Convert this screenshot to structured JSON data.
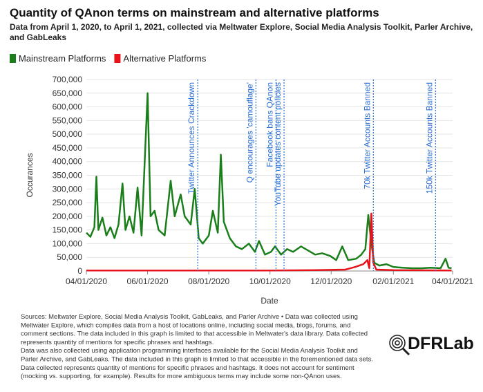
{
  "chart_data": {
    "type": "line",
    "title": "Quantity of QAnon terms on mainstream and alternative platforms",
    "subtitle": [
      "Data from April 1, 2020, to April 1, 2021, collected via Meltwater Explore, Social Media Analysis Toolkit, Parler Archive,",
      "and GabLeaks"
    ],
    "x_label": "Date",
    "y_label": "Occurances",
    "xlim": [
      "2020-04-01",
      "2021-04-01"
    ],
    "xticks": [
      {
        "value": "2020-04-01",
        "label": "04/01/2020"
      },
      {
        "value": "2020-06-01",
        "label": "06/01/2020"
      },
      {
        "value": "2020-08-01",
        "label": "08/01/2020"
      },
      {
        "value": "2020-10-01",
        "label": "10/01/2020"
      },
      {
        "value": "2020-12-01",
        "label": "12/01/2020"
      },
      {
        "value": "2021-02-01",
        "label": "02/01/2021"
      },
      {
        "value": "2021-04-01",
        "label": "04/01/2021"
      }
    ],
    "ylim": [
      0,
      700000
    ],
    "yticks": [
      0,
      {
        "value": 50000,
        "label": "50,000"
      },
      {
        "value": 100000,
        "label": "100,000"
      },
      {
        "value": 150000,
        "label": "150,000"
      },
      {
        "value": 200000,
        "label": "200,000"
      },
      {
        "value": 250000,
        "label": "250,000"
      },
      {
        "value": 300000,
        "label": "300,000"
      },
      {
        "value": 350000,
        "label": "350,000"
      },
      {
        "value": 400000,
        "label": "400,000"
      },
      {
        "value": 450000,
        "label": "450,000"
      },
      {
        "value": 500000,
        "label": "500,000"
      },
      {
        "value": 550000,
        "label": "550,000"
      },
      {
        "value": 600000,
        "label": "600,000"
      },
      {
        "value": 650000,
        "label": "650,000"
      },
      {
        "value": 700000,
        "label": "700,000"
      }
    ],
    "series": [
      {
        "name": "Mainstream Platforms",
        "color": "#1a7f1a",
        "x": [
          "2020-04-01",
          "2020-04-05",
          "2020-04-09",
          "2020-04-11",
          "2020-04-13",
          "2020-04-17",
          "2020-04-21",
          "2020-04-25",
          "2020-04-29",
          "2020-05-03",
          "2020-05-07",
          "2020-05-10",
          "2020-05-14",
          "2020-05-18",
          "2020-05-22",
          "2020-05-26",
          "2020-06-01",
          "2020-06-04",
          "2020-06-08",
          "2020-06-12",
          "2020-06-18",
          "2020-06-24",
          "2020-06-28",
          "2020-07-04",
          "2020-07-08",
          "2020-07-14",
          "2020-07-18",
          "2020-07-22",
          "2020-07-26",
          "2020-08-01",
          "2020-08-05",
          "2020-08-10",
          "2020-08-13",
          "2020-08-16",
          "2020-08-22",
          "2020-08-28",
          "2020-09-03",
          "2020-09-10",
          "2020-09-16",
          "2020-09-20",
          "2020-09-26",
          "2020-10-02",
          "2020-10-06",
          "2020-10-12",
          "2020-10-18",
          "2020-10-24",
          "2020-11-01",
          "2020-11-08",
          "2020-11-15",
          "2020-11-22",
          "2020-11-30",
          "2020-12-06",
          "2020-12-12",
          "2020-12-18",
          "2020-12-26",
          "2020-12-31",
          "2021-01-04",
          "2021-01-07",
          "2021-01-10",
          "2021-01-13",
          "2021-01-18",
          "2021-01-25",
          "2021-02-01",
          "2021-02-10",
          "2021-02-20",
          "2021-03-01",
          "2021-03-10",
          "2021-03-20",
          "2021-03-25",
          "2021-03-28",
          "2021-03-31"
        ],
        "values": [
          140000,
          125000,
          160000,
          345000,
          150000,
          195000,
          130000,
          160000,
          120000,
          170000,
          320000,
          150000,
          200000,
          140000,
          305000,
          130000,
          650000,
          200000,
          220000,
          150000,
          130000,
          330000,
          200000,
          280000,
          200000,
          170000,
          300000,
          120000,
          100000,
          130000,
          220000,
          140000,
          425000,
          180000,
          120000,
          90000,
          80000,
          100000,
          70000,
          110000,
          60000,
          70000,
          90000,
          60000,
          80000,
          70000,
          90000,
          75000,
          60000,
          65000,
          55000,
          40000,
          90000,
          40000,
          45000,
          60000,
          80000,
          205000,
          100000,
          30000,
          20000,
          25000,
          15000,
          12000,
          10000,
          10000,
          12000,
          10000,
          45000,
          12000,
          10000
        ]
      },
      {
        "name": "Alternative Platforms",
        "color": "#e8121b",
        "x": [
          "2020-04-01",
          "2020-06-01",
          "2020-08-01",
          "2020-10-01",
          "2020-11-15",
          "2020-12-15",
          "2020-12-25",
          "2021-01-02",
          "2021-01-06",
          "2021-01-08",
          "2021-01-10",
          "2021-01-12",
          "2021-01-15",
          "2021-02-01",
          "2021-03-31"
        ],
        "values": [
          2000,
          2000,
          2000,
          2000,
          3000,
          5000,
          15000,
          25000,
          40000,
          10000,
          210000,
          30000,
          5000,
          3000,
          2000
        ]
      }
    ],
    "annotations": [
      {
        "label": "Twitter Announces Crackdown",
        "x": "2020-07-21"
      },
      {
        "label": "Q encourages 'camouflage'",
        "x": "2020-09-17"
      },
      {
        "label": "Facebook bans QAnon",
        "x": "2020-10-07"
      },
      {
        "label": "YouTube updates content policies",
        "x": "2020-10-15"
      },
      {
        "label": "70k Twitter Accounts Banned",
        "x": "2021-01-12"
      },
      {
        "label": "150k Twitter Accounts Banned",
        "x": "2021-03-15"
      }
    ],
    "notes": [
      "Sources: Meltwater Explore, Social Media Analysis Toolkit, GabLeaks, and Parler Archive • Data was collected using",
      "Meltwater Explore, which compiles data from a host of locations online, including social media, blogs, forums, and",
      "comment sections. The data included in this graph is limited to that accessible in Meltwater's data library. Data collected",
      "represents quantity of mentions for specific phrases and hashtags.",
      "Data was also collected using application programming interfaces available for the Social Media Analysis Toolkit and",
      "Parler Archive, and GabLeaks. The data included in this graph is limited to that accessible in the forementioned data sets.",
      "Data collected represents quantity of mentions for specific phrases and hashtags. It does not account for sentiment",
      "(mocking vs. supporting, for example). Results for more ambiguous terms may include some non-QAnon uses."
    ],
    "logo": "DFRLab"
  }
}
